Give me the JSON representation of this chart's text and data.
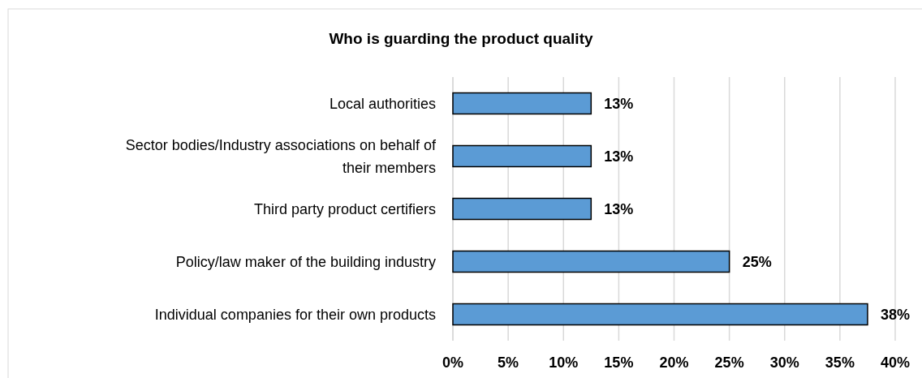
{
  "chart_data": {
    "type": "bar",
    "orientation": "horizontal",
    "title": "Who is guarding the product quality",
    "categories": [
      "Local authorities",
      "Sector bodies/Industry associations on behalf of their members",
      "Third party product certifiers",
      "Policy/law maker of the building industry",
      "Individual companies for their own products"
    ],
    "values": [
      12.5,
      12.5,
      12.5,
      25,
      37.5
    ],
    "value_labels": [
      "13%",
      "13%",
      "13%",
      "25%",
      "38%"
    ],
    "color": "#5b9bd5",
    "xlim": [
      0,
      40
    ],
    "xticks": [
      {
        "value": 0,
        "label": "0%"
      },
      {
        "value": 5,
        "label": "5%"
      },
      {
        "value": 10,
        "label": "10%"
      },
      {
        "value": 15,
        "label": "15%"
      },
      {
        "value": 20,
        "label": "20%"
      },
      {
        "value": 25,
        "label": "25%"
      },
      {
        "value": 30,
        "label": "30%"
      },
      {
        "value": 35,
        "label": "35%"
      },
      {
        "value": 40,
        "label": "40%"
      }
    ],
    "grid": "x"
  }
}
